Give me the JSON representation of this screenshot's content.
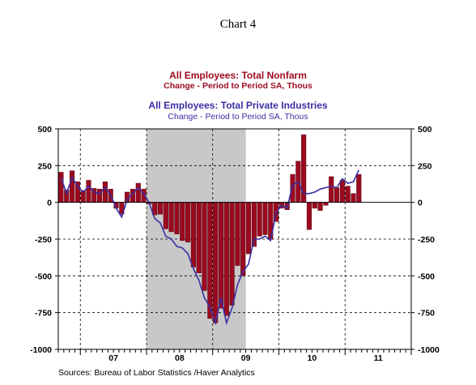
{
  "page_heading": "Chart 4",
  "source_note": "Sources:  Bureau of Labor Statistics /Haver Analytics",
  "colors": {
    "nonfarm": "#9B0A1E",
    "private": "#3A2FA3",
    "recession": "#C8C8C8"
  },
  "chart_data": {
    "type": "bar",
    "title_nonfarm": "All Employees: Total Nonfarm",
    "subtitle_nonfarm": "Change - Period to Period    SA, Thous",
    "title_private": "All Employees: Total Private Industries",
    "subtitle_private": "Change - Period to Period    SA, Thous",
    "ylim": [
      -1000,
      500
    ],
    "yticks_left": [
      "500",
      "250",
      "0",
      "-250",
      "-500",
      "-750",
      "-1000"
    ],
    "yticks_right": [
      "500",
      "250",
      "0",
      "-250",
      "-500",
      "-750",
      "-1000"
    ],
    "x_start": "2006-09",
    "x_end": "2011-12",
    "year_labels": [
      "07",
      "08",
      "09",
      "10",
      "11"
    ],
    "recession": [
      "2008-01",
      "2009-06"
    ],
    "grid": "dashed, at year boundaries and 250 intervals",
    "series": [
      {
        "name": "All Employees: Total Nonfarm",
        "type": "bar",
        "months": [
          "2006-09",
          "2006-10",
          "2006-11",
          "2006-12",
          "2007-01",
          "2007-02",
          "2007-03",
          "2007-04",
          "2007-05",
          "2007-06",
          "2007-07",
          "2007-08",
          "2007-09",
          "2007-10",
          "2007-11",
          "2007-12",
          "2008-01",
          "2008-02",
          "2008-03",
          "2008-04",
          "2008-05",
          "2008-06",
          "2008-07",
          "2008-08",
          "2008-09",
          "2008-10",
          "2008-11",
          "2008-12",
          "2009-01",
          "2009-02",
          "2009-03",
          "2009-04",
          "2009-05",
          "2009-06",
          "2009-07",
          "2009-08",
          "2009-09",
          "2009-10",
          "2009-11",
          "2009-12",
          "2010-01",
          "2010-02",
          "2010-03",
          "2010-04",
          "2010-05",
          "2010-06",
          "2010-07",
          "2010-08",
          "2010-09",
          "2010-10",
          "2010-11",
          "2010-12",
          "2011-01",
          "2011-02",
          "2011-03"
        ],
        "values": [
          205,
          85,
          215,
          140,
          80,
          150,
          95,
          90,
          140,
          90,
          -40,
          -80,
          70,
          90,
          130,
          90,
          -10,
          -85,
          -80,
          -180,
          -200,
          -215,
          -260,
          -270,
          -440,
          -480,
          -600,
          -790,
          -820,
          -720,
          -770,
          -700,
          -430,
          -500,
          -350,
          -300,
          -230,
          -220,
          -250,
          -130,
          -40,
          -50,
          190,
          280,
          460,
          -185,
          -40,
          -55,
          -20,
          175,
          100,
          150,
          110,
          60,
          190
        ]
      },
      {
        "name": "All Employees: Total Private Industries",
        "type": "line",
        "months": [
          "2006-09",
          "2006-10",
          "2006-11",
          "2006-12",
          "2007-01",
          "2007-02",
          "2007-03",
          "2007-04",
          "2007-05",
          "2007-06",
          "2007-07",
          "2007-08",
          "2007-09",
          "2007-10",
          "2007-11",
          "2007-12",
          "2008-01",
          "2008-02",
          "2008-03",
          "2008-04",
          "2008-05",
          "2008-06",
          "2008-07",
          "2008-08",
          "2008-09",
          "2008-10",
          "2008-11",
          "2008-12",
          "2009-01",
          "2009-02",
          "2009-03",
          "2009-04",
          "2009-05",
          "2009-06",
          "2009-07",
          "2009-08",
          "2009-09",
          "2009-10",
          "2009-11",
          "2009-12",
          "2010-01",
          "2010-02",
          "2010-03",
          "2010-04",
          "2010-05",
          "2010-06",
          "2010-07",
          "2010-08",
          "2010-09",
          "2010-10",
          "2010-11",
          "2010-12",
          "2011-01",
          "2011-02",
          "2011-03"
        ],
        "values": [
          170,
          60,
          170,
          110,
          70,
          110,
          70,
          60,
          100,
          50,
          -40,
          -100,
          20,
          60,
          100,
          60,
          -5,
          -110,
          -140,
          -230,
          -250,
          -300,
          -310,
          -350,
          -450,
          -530,
          -650,
          -710,
          -820,
          -650,
          -820,
          -720,
          -560,
          -470,
          -420,
          -250,
          -250,
          -230,
          -260,
          -70,
          -20,
          -40,
          120,
          140,
          60,
          60,
          70,
          90,
          100,
          110,
          100,
          160,
          130,
          140,
          220
        ]
      }
    ]
  }
}
